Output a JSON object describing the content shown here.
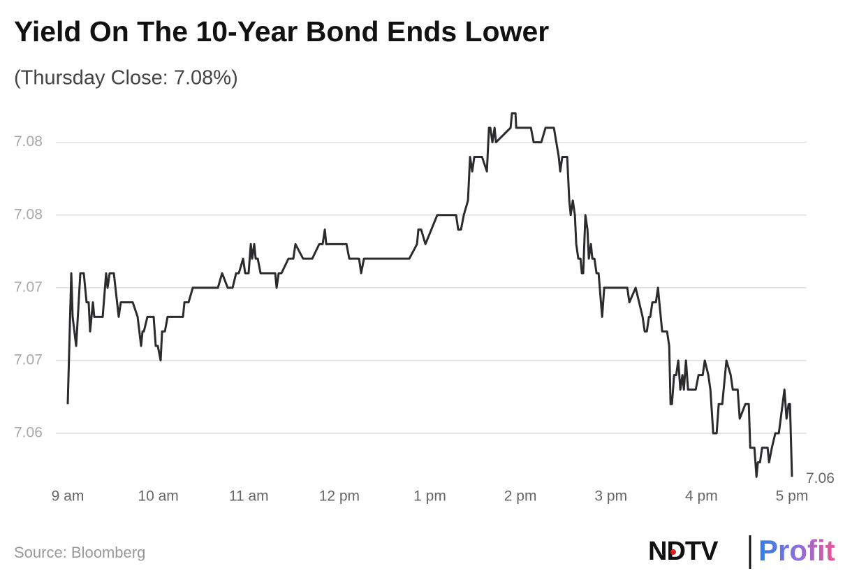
{
  "chart_data": {
    "type": "line",
    "title": "Yield On The 10-Year Bond Ends Lower",
    "subtitle": "(Thursday Close: 7.08%)",
    "color": "#2b2b2e",
    "grid": true,
    "xlim": [
      9,
      17
    ],
    "xticks": [
      {
        "value": 9,
        "label": "9 am"
      },
      {
        "value": 10,
        "label": "10 am"
      },
      {
        "value": 11,
        "label": "11 am"
      },
      {
        "value": 12,
        "label": "12 pm"
      },
      {
        "value": 13,
        "label": "1 pm"
      },
      {
        "value": 14,
        "label": "2 pm"
      },
      {
        "value": 15,
        "label": "3 pm"
      },
      {
        "value": 16,
        "label": "4 pm"
      },
      {
        "value": 17,
        "label": "5 pm"
      }
    ],
    "ylim": [
      7.056,
      7.082
    ],
    "yticks": [
      7.08,
      {
        "value": 7.075,
        "label": "7.08"
      },
      7.07,
      {
        "value": 7.065,
        "label": "7.07"
      },
      7.06
    ],
    "x": [
      9.0,
      9.039,
      9.054,
      9.093,
      9.139,
      9.177,
      9.208,
      9.231,
      9.247,
      9.278,
      9.293,
      9.386,
      9.424,
      9.44,
      9.463,
      9.509,
      9.563,
      9.586,
      9.718,
      9.772,
      9.81,
      9.826,
      9.841,
      9.88,
      9.949,
      9.972,
      9.995,
      10.026,
      10.042,
      10.073,
      10.103,
      10.273,
      10.289,
      10.335,
      10.381,
      10.659,
      10.705,
      10.767,
      10.821,
      10.86,
      10.89,
      10.937,
      10.96,
      10.998,
      11.022,
      11.037,
      11.06,
      11.076,
      11.099,
      11.13,
      11.292,
      11.307,
      11.33,
      11.361,
      11.438,
      11.492,
      11.515,
      11.6,
      11.701,
      11.778,
      11.816,
      11.84,
      11.855,
      12.079,
      12.11,
      12.218,
      12.241,
      12.272,
      12.773,
      12.858,
      12.873,
      12.904,
      12.951,
      13.082,
      13.29,
      13.313,
      13.344,
      13.375,
      13.421,
      13.444,
      13.468,
      13.491,
      13.576,
      13.63,
      13.653,
      13.668,
      13.691,
      13.715,
      13.73,
      13.892,
      13.907,
      13.946,
      13.954,
      14.116,
      14.147,
      14.231,
      14.278,
      14.37,
      14.424,
      14.44,
      14.463,
      14.517,
      14.54,
      14.556,
      14.579,
      14.602,
      14.617,
      14.64,
      14.664,
      14.679,
      14.694,
      14.718,
      14.741,
      14.756,
      14.779,
      14.795,
      14.818,
      14.841,
      14.864,
      14.903,
      14.926,
      15.181,
      15.204,
      15.273,
      15.35,
      15.373,
      15.397,
      15.42,
      15.435,
      15.458,
      15.497,
      15.52,
      15.535,
      15.566,
      15.62,
      15.644,
      15.659,
      15.674,
      15.698,
      15.721,
      15.744,
      15.767,
      15.79,
      15.806,
      15.829,
      15.852,
      15.937,
      15.968,
      16.014,
      16.037,
      16.076,
      16.099,
      16.13,
      16.168,
      16.191,
      16.23,
      16.276,
      16.323,
      16.346,
      16.4,
      16.423,
      16.485,
      16.523,
      16.539,
      16.585,
      16.608,
      16.623,
      16.647,
      16.67,
      16.731,
      16.747,
      16.778,
      16.816,
      16.855,
      16.917,
      16.94,
      16.963,
      16.978,
      17.0
    ],
    "values": [
      7.062,
      7.071,
      7.068,
      7.066,
      7.071,
      7.071,
      7.069,
      7.069,
      7.067,
      7.069,
      7.068,
      7.068,
      7.071,
      7.07,
      7.071,
      7.071,
      7.068,
      7.069,
      7.069,
      7.068,
      7.066,
      7.067,
      7.067,
      7.068,
      7.068,
      7.066,
      7.066,
      7.065,
      7.067,
      7.067,
      7.068,
      7.068,
      7.069,
      7.069,
      7.07,
      7.07,
      7.071,
      7.07,
      7.07,
      7.071,
      7.071,
      7.072,
      7.071,
      7.071,
      7.073,
      7.072,
      7.073,
      7.072,
      7.072,
      7.071,
      7.071,
      7.07,
      7.071,
      7.071,
      7.072,
      7.072,
      7.073,
      7.072,
      7.072,
      7.073,
      7.073,
      7.074,
      7.073,
      7.073,
      7.072,
      7.072,
      7.071,
      7.072,
      7.072,
      7.073,
      7.074,
      7.074,
      7.073,
      7.075,
      7.075,
      7.074,
      7.074,
      7.075,
      7.076,
      7.079,
      7.078,
      7.079,
      7.079,
      7.078,
      7.081,
      7.081,
      7.08,
      7.081,
      7.08,
      7.081,
      7.082,
      7.082,
      7.081,
      7.081,
      7.08,
      7.08,
      7.081,
      7.081,
      7.079,
      7.078,
      7.079,
      7.079,
      7.076,
      7.075,
      7.076,
      7.075,
      7.073,
      7.072,
      7.072,
      7.071,
      7.071,
      7.075,
      7.074,
      7.072,
      7.073,
      7.072,
      7.072,
      7.071,
      7.071,
      7.068,
      7.07,
      7.07,
      7.069,
      7.07,
      7.068,
      7.067,
      7.067,
      7.068,
      7.068,
      7.069,
      7.069,
      7.07,
      7.069,
      7.067,
      7.067,
      7.066,
      7.062,
      7.062,
      7.064,
      7.064,
      7.065,
      7.063,
      7.064,
      7.063,
      7.065,
      7.063,
      7.063,
      7.064,
      7.064,
      7.065,
      7.064,
      7.063,
      7.06,
      7.06,
      7.062,
      7.062,
      7.065,
      7.064,
      7.063,
      7.063,
      7.061,
      7.062,
      7.062,
      7.059,
      7.059,
      7.057,
      7.058,
      7.058,
      7.059,
      7.059,
      7.058,
      7.059,
      7.06,
      7.06,
      7.063,
      7.061,
      7.062,
      7.062,
      7.057
    ],
    "value_labels": [
      null,
      null,
      null,
      null,
      null,
      null,
      null,
      null,
      null,
      null,
      null,
      null,
      null,
      null,
      null,
      null,
      null,
      null,
      null,
      null,
      null,
      null,
      null,
      null,
      null,
      null,
      null,
      null,
      null,
      null,
      null,
      null,
      null,
      null,
      null,
      null,
      null,
      null,
      null,
      null,
      null,
      null,
      null,
      null,
      null,
      null,
      null,
      null,
      null,
      null,
      null,
      null,
      null,
      null,
      null,
      null,
      null,
      null,
      null,
      null,
      null,
      null,
      null,
      null,
      null,
      null,
      null,
      null,
      null,
      null,
      null,
      null,
      null,
      null,
      null,
      null,
      null,
      null,
      null,
      null,
      null,
      null,
      null,
      null,
      null,
      null,
      null,
      null,
      null,
      null,
      null,
      null,
      null,
      null,
      null,
      null,
      null,
      null,
      null,
      null,
      null,
      null,
      null,
      null,
      null,
      null,
      null,
      null,
      null,
      null,
      null,
      null,
      null,
      null,
      null,
      null,
      null,
      null,
      null,
      null,
      null,
      null,
      null,
      null,
      null,
      null,
      null,
      null,
      null,
      null,
      null,
      null,
      null,
      null,
      null,
      null,
      null,
      null,
      null,
      null,
      null,
      null,
      null,
      null,
      null,
      null,
      null,
      null,
      null,
      null,
      null,
      null,
      null,
      null,
      null,
      null,
      null,
      null,
      null,
      null,
      null,
      null,
      null,
      null,
      null,
      null,
      null,
      null,
      null,
      null,
      null,
      null,
      null,
      null,
      null,
      null,
      null,
      null,
      "7.06"
    ],
    "source": "Source: Bloomberg"
  },
  "logo": {
    "brand": "NDTV",
    "product": "Profit"
  }
}
